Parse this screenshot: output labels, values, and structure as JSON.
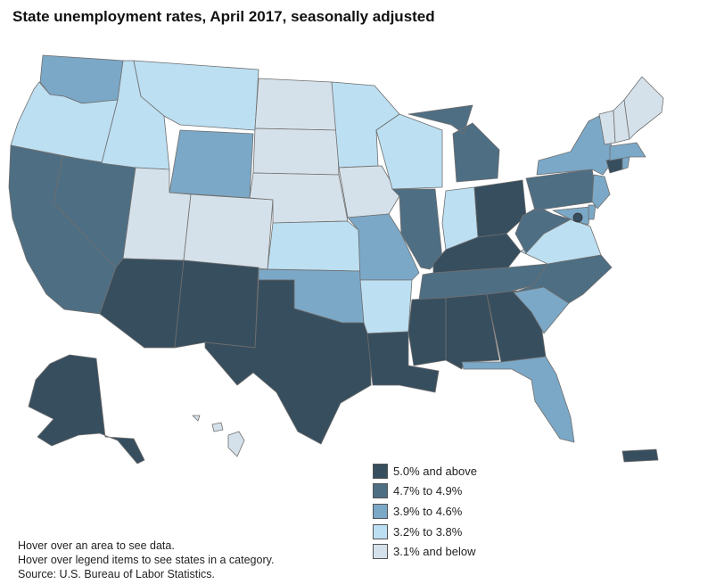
{
  "title": "State unemployment rates, April 2017, seasonally adjusted",
  "legend": [
    {
      "key": "c5",
      "label": "5.0% and above",
      "color": "#374e5e"
    },
    {
      "key": "c4",
      "label": "4.7% to 4.9%",
      "color": "#4e6e83"
    },
    {
      "key": "c3",
      "label": "3.9% to 4.6%",
      "color": "#7ba8c7"
    },
    {
      "key": "c2",
      "label": "3.2% to 3.8%",
      "color": "#bcdff2"
    },
    {
      "key": "c1",
      "label": "3.1% and below",
      "color": "#d5e1ea"
    }
  ],
  "notes": {
    "line1": "Hover over an area to see data.",
    "line2": "Hover over legend items to see states in a category.",
    "line3": "Source: U.S. Bureau of Labor Statistics."
  },
  "state_categories": {
    "WA": "c3",
    "OR": "c2",
    "CA": "c4",
    "NV": "c4",
    "ID": "c2",
    "MT": "c2",
    "WY": "c3",
    "UT": "c1",
    "CO": "c1",
    "AZ": "c5",
    "NM": "c5",
    "ND": "c1",
    "SD": "c1",
    "NE": "c1",
    "KS": "c2",
    "OK": "c3",
    "TX": "c5",
    "MN": "c2",
    "IA": "c1",
    "MO": "c3",
    "AR": "c2",
    "LA": "c5",
    "WI": "c2",
    "IL": "c4",
    "MI": "c4",
    "IN": "c2",
    "OH": "c5",
    "KY": "c5",
    "TN": "c4",
    "MS": "c5",
    "AL": "c5",
    "GA": "c5",
    "FL": "c3",
    "SC": "c3",
    "NC": "c4",
    "VA": "c2",
    "WV": "c4",
    "MD": "c3",
    "DE": "c3",
    "DC": "c5",
    "PA": "c4",
    "NY": "c3",
    "NJ": "c3",
    "CT": "c5",
    "RI": "c3",
    "MA": "c3",
    "VT": "c1",
    "NH": "c1",
    "ME": "c1",
    "AK": "c5",
    "HI": "c1",
    "PR": "c5"
  }
}
